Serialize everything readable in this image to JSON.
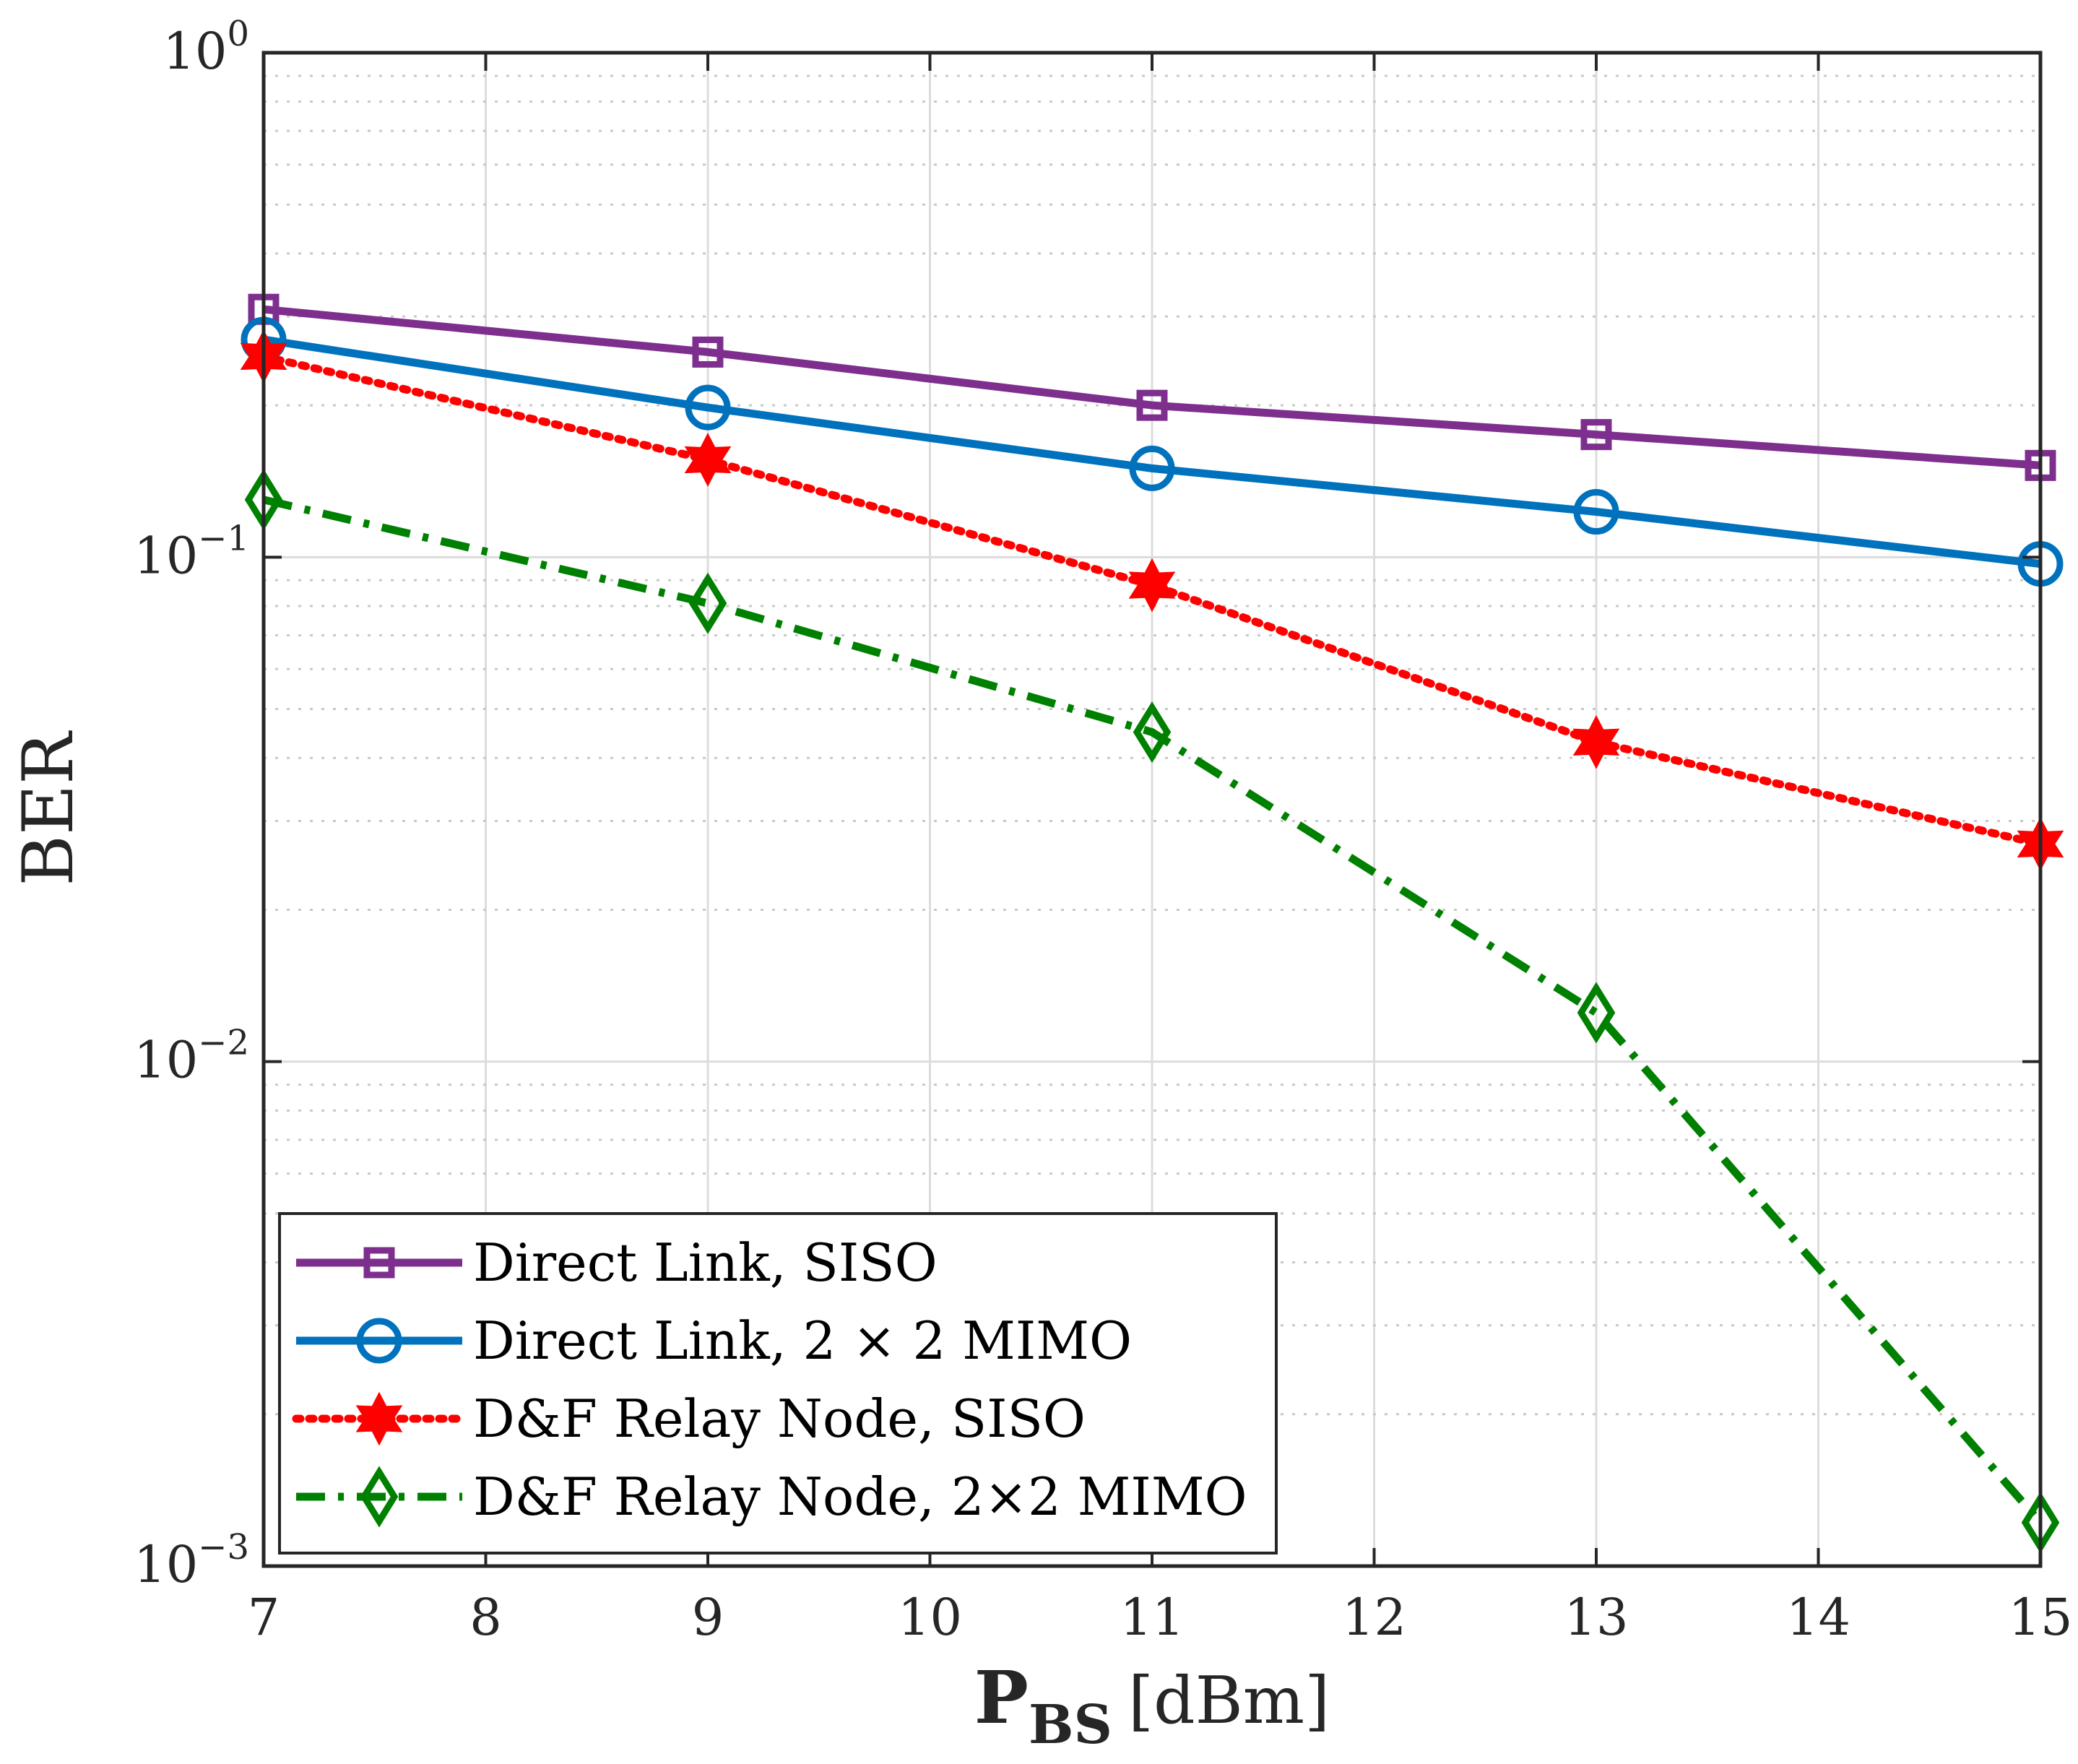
{
  "chart_data": {
    "type": "line",
    "yscale": "log",
    "xlabel": {
      "main": "P",
      "sub": "BS",
      "unit": "[dBm]"
    },
    "ylabel": "BER",
    "xlim": [
      7,
      15
    ],
    "ylim": [
      0.001,
      1
    ],
    "xticks": [
      7,
      8,
      9,
      10,
      11,
      12,
      13,
      14,
      15
    ],
    "yticks": [
      {
        "value": 1,
        "base": "10",
        "exp": "0"
      },
      {
        "value": 0.1,
        "base": "10",
        "exp": "−1"
      },
      {
        "value": 0.01,
        "base": "10",
        "exp": "−2"
      },
      {
        "value": 0.001,
        "base": "10",
        "exp": "−3"
      }
    ],
    "grid": true,
    "legend_position": "bottom-left",
    "series": [
      {
        "name": "Direct Link, SISO",
        "color": "#7E2F8E",
        "linestyle": "solid",
        "marker": "square",
        "x": [
          7,
          9,
          11,
          13,
          15
        ],
        "values": [
          0.31,
          0.255,
          0.2,
          0.175,
          0.152
        ]
      },
      {
        "name": "Direct Link, 2 × 2 MIMO",
        "color": "#0072BD",
        "linestyle": "solid",
        "marker": "circle",
        "x": [
          7,
          9,
          11,
          13,
          15
        ],
        "values": [
          0.27,
          0.198,
          0.15,
          0.123,
          0.097
        ]
      },
      {
        "name": "D&F Relay Node, SISO",
        "color": "#FF0000",
        "linestyle": "dotted",
        "marker": "hexagram",
        "x": [
          7,
          9,
          11,
          13,
          15
        ],
        "values": [
          0.25,
          0.156,
          0.088,
          0.043,
          0.027
        ]
      },
      {
        "name": "D&F Relay Node, 2×2 MIMO",
        "color": "#008000",
        "linestyle": "dashdot",
        "marker": "diamond",
        "x": [
          7,
          9,
          11,
          13,
          15
        ],
        "values": [
          0.13,
          0.081,
          0.045,
          0.0125,
          0.00122
        ]
      }
    ]
  }
}
